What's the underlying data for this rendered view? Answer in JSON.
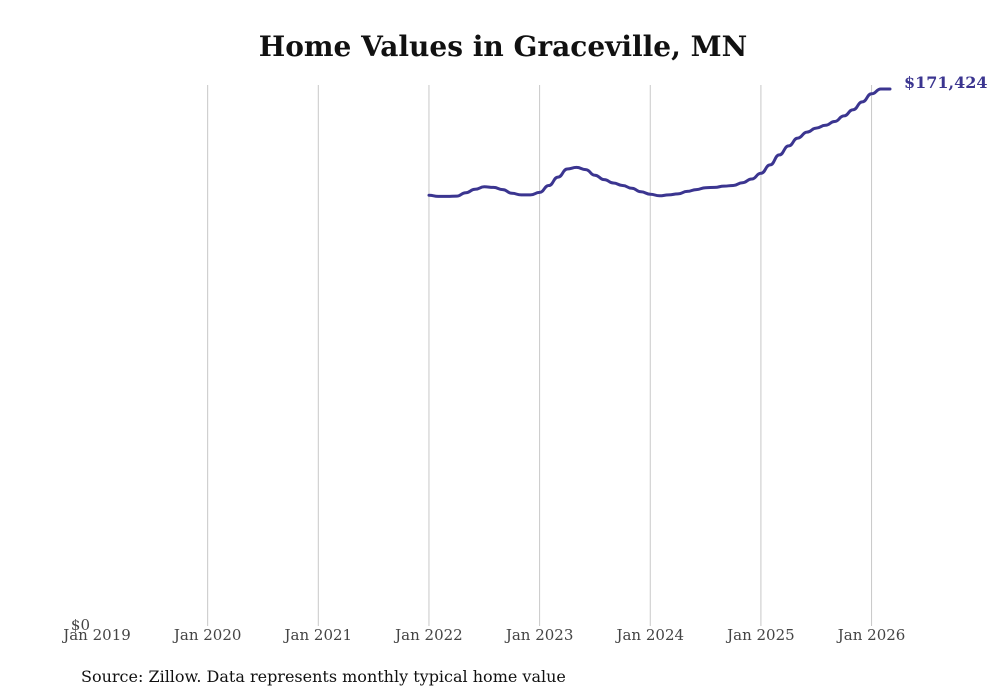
{
  "title": "Home Values in Graceville, MN",
  "source": "Source: Zillow. Data represents monthly typical home value",
  "chart_data": {
    "type": "line",
    "title": "Home Values in Graceville, MN",
    "xlabel": "",
    "ylabel": "",
    "x_ticks": [
      "Jan 2019",
      "Jan 2020",
      "Jan 2021",
      "Jan 2022",
      "Jan 2023",
      "Jan 2024",
      "Jan 2025",
      "Jan 2026"
    ],
    "y_ticks": [
      "$0"
    ],
    "xlim": [
      "2019-01",
      "2026-03"
    ],
    "ylim": [
      0,
      171424
    ],
    "grid": "vertical",
    "end_label": "$171,424",
    "line_color": "#3b3590",
    "series": [
      {
        "x": [
          "2022-01",
          "2022-02",
          "2022-03",
          "2022-04",
          "2022-05",
          "2022-06",
          "2022-07",
          "2022-08",
          "2022-09",
          "2022-10",
          "2022-11",
          "2022-12",
          "2023-01",
          "2023-02",
          "2023-03",
          "2023-04",
          "2023-05",
          "2023-06",
          "2023-07",
          "2023-08",
          "2023-09",
          "2023-10",
          "2023-11",
          "2023-12",
          "2024-01",
          "2024-02",
          "2024-03",
          "2024-04",
          "2024-05",
          "2024-06",
          "2024-07",
          "2024-08",
          "2024-09",
          "2024-10",
          "2024-11",
          "2024-12",
          "2025-01",
          "2025-02",
          "2025-03",
          "2025-04",
          "2025-05",
          "2025-06",
          "2025-07",
          "2025-08",
          "2025-09",
          "2025-10",
          "2025-11",
          "2025-12",
          "2026-01",
          "2026-02",
          "2026-03"
        ],
        "values": [
          137400,
          137000,
          137000,
          137100,
          138200,
          139300,
          140100,
          139900,
          139200,
          138000,
          137500,
          137500,
          138300,
          140500,
          143200,
          145800,
          146300,
          145600,
          143800,
          142400,
          141300,
          140500,
          139600,
          138500,
          137700,
          137200,
          137500,
          137800,
          138600,
          139200,
          139800,
          139900,
          140300,
          140500,
          141400,
          142600,
          144400,
          147100,
          150300,
          153200,
          155700,
          157600,
          158900,
          159800,
          161000,
          162800,
          164800,
          167300,
          169900,
          171424,
          171424
        ]
      }
    ]
  }
}
